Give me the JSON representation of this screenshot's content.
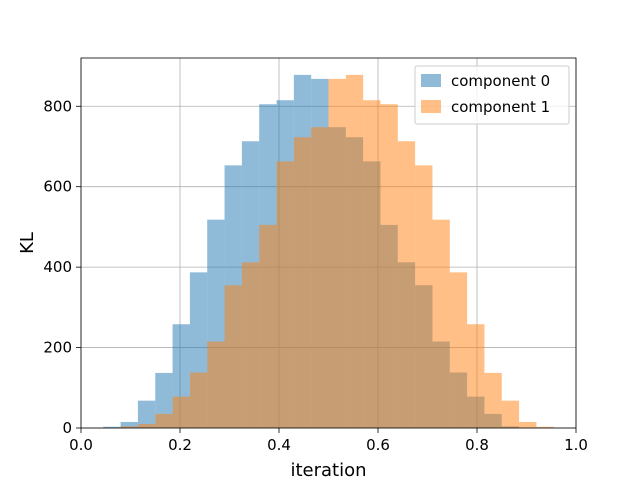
{
  "chart_data": {
    "type": "bar",
    "title": "",
    "xlabel": "iteration",
    "ylabel": "KL",
    "xlim": [
      0.0,
      1.0
    ],
    "ylim": [
      0,
      920
    ],
    "xticks": [
      "0.0",
      "0.2",
      "0.4",
      "0.6",
      "0.8",
      "1.0"
    ],
    "yticks": [
      "0",
      "200",
      "400",
      "600",
      "800"
    ],
    "grid": true,
    "legend_position": "top-right",
    "bin_width": 0.035,
    "series": [
      {
        "name": "component 0",
        "color": "#1f77b4",
        "alpha": 0.5,
        "bins": [
          {
            "x0": 0.045,
            "value": 3
          },
          {
            "x0": 0.08,
            "value": 15
          },
          {
            "x0": 0.115,
            "value": 68
          },
          {
            "x0": 0.15,
            "value": 137
          },
          {
            "x0": 0.185,
            "value": 258
          },
          {
            "x0": 0.22,
            "value": 387
          },
          {
            "x0": 0.255,
            "value": 518
          },
          {
            "x0": 0.29,
            "value": 653
          },
          {
            "x0": 0.325,
            "value": 713
          },
          {
            "x0": 0.36,
            "value": 805
          },
          {
            "x0": 0.395,
            "value": 815
          },
          {
            "x0": 0.43,
            "value": 878
          },
          {
            "x0": 0.465,
            "value": 868
          },
          {
            "x0": 0.5,
            "value": 748
          },
          {
            "x0": 0.535,
            "value": 723
          },
          {
            "x0": 0.57,
            "value": 663
          },
          {
            "x0": 0.605,
            "value": 505
          },
          {
            "x0": 0.64,
            "value": 412
          },
          {
            "x0": 0.675,
            "value": 355
          },
          {
            "x0": 0.71,
            "value": 215
          },
          {
            "x0": 0.745,
            "value": 138
          },
          {
            "x0": 0.78,
            "value": 78
          },
          {
            "x0": 0.815,
            "value": 35
          },
          {
            "x0": 0.85,
            "value": 4
          }
        ]
      },
      {
        "name": "component 1",
        "color": "#ff7f0e",
        "alpha": 0.5,
        "bins": [
          {
            "x0": 0.08,
            "value": 4
          },
          {
            "x0": 0.115,
            "value": 10
          },
          {
            "x0": 0.15,
            "value": 35
          },
          {
            "x0": 0.185,
            "value": 78
          },
          {
            "x0": 0.22,
            "value": 138
          },
          {
            "x0": 0.255,
            "value": 215
          },
          {
            "x0": 0.29,
            "value": 355
          },
          {
            "x0": 0.325,
            "value": 412
          },
          {
            "x0": 0.36,
            "value": 505
          },
          {
            "x0": 0.395,
            "value": 663
          },
          {
            "x0": 0.43,
            "value": 723
          },
          {
            "x0": 0.465,
            "value": 748
          },
          {
            "x0": 0.5,
            "value": 868
          },
          {
            "x0": 0.535,
            "value": 878
          },
          {
            "x0": 0.57,
            "value": 815
          },
          {
            "x0": 0.605,
            "value": 805
          },
          {
            "x0": 0.64,
            "value": 713
          },
          {
            "x0": 0.675,
            "value": 653
          },
          {
            "x0": 0.71,
            "value": 518
          },
          {
            "x0": 0.745,
            "value": 387
          },
          {
            "x0": 0.78,
            "value": 258
          },
          {
            "x0": 0.815,
            "value": 137
          },
          {
            "x0": 0.85,
            "value": 68
          },
          {
            "x0": 0.885,
            "value": 15
          },
          {
            "x0": 0.92,
            "value": 3
          }
        ]
      }
    ]
  }
}
